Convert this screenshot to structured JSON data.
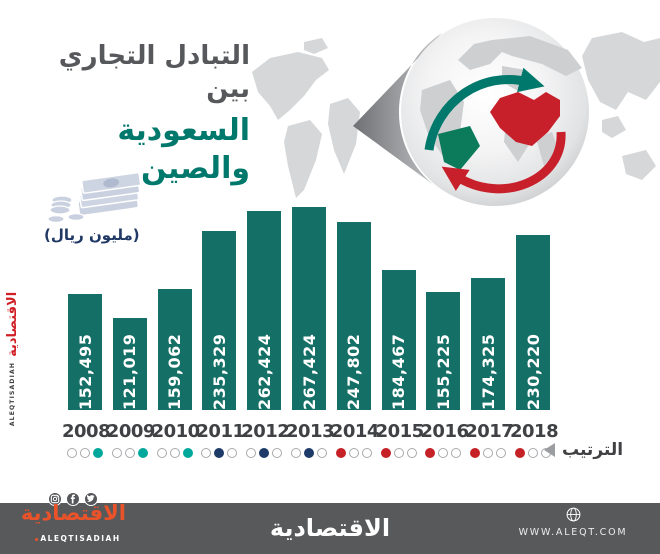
{
  "title": {
    "line1": "التبادل التجاري بين",
    "line2": "السعودية والصين"
  },
  "unit": {
    "label": "(مليون ريال)",
    "icon": "money-stack-icon"
  },
  "chart_data": {
    "type": "bar",
    "title": "التبادل التجاري بين السعودية والصين",
    "ylabel": "(مليون ريال)",
    "categories": [
      "2008",
      "2009",
      "2010",
      "2011",
      "2012",
      "2013",
      "2014",
      "2015",
      "2016",
      "2017",
      "2018"
    ],
    "values": [
      152495,
      121019,
      159062,
      235329,
      262424,
      267424,
      247802,
      184467,
      155225,
      174325,
      230220
    ],
    "value_labels": [
      "152,495",
      "121,019",
      "159,062",
      "235,329",
      "262,424",
      "267,424",
      "247,802",
      "184,467",
      "155,225",
      "174,325",
      "230,220"
    ],
    "ylim": [
      0,
      267424
    ],
    "bar_color": "#146F66",
    "grid": false,
    "legend": "الترتيب",
    "rank_dots": {
      "dot_colors": {
        "teal": "#00A79B",
        "navy": "#1E3A68",
        "red": "#C52127"
      },
      "outline_color": "#A7A9AC",
      "per_year": [
        {
          "year": "2008",
          "rank": 3,
          "dots": [
            "outline",
            "outline",
            "teal"
          ]
        },
        {
          "year": "2009",
          "rank": 3,
          "dots": [
            "outline",
            "outline",
            "teal"
          ]
        },
        {
          "year": "2010",
          "rank": 3,
          "dots": [
            "outline",
            "outline",
            "teal"
          ]
        },
        {
          "year": "2011",
          "rank": 2,
          "dots": [
            "outline",
            "navy",
            "outline"
          ]
        },
        {
          "year": "2012",
          "rank": 2,
          "dots": [
            "outline",
            "navy",
            "outline"
          ]
        },
        {
          "year": "2013",
          "rank": 2,
          "dots": [
            "outline",
            "navy",
            "outline"
          ]
        },
        {
          "year": "2014",
          "rank": 1,
          "dots": [
            "red",
            "outline",
            "outline"
          ]
        },
        {
          "year": "2015",
          "rank": 1,
          "dots": [
            "red",
            "outline",
            "outline"
          ]
        },
        {
          "year": "2016",
          "rank": 1,
          "dots": [
            "red",
            "outline",
            "outline"
          ]
        },
        {
          "year": "2017",
          "rank": 1,
          "dots": [
            "red",
            "outline",
            "outline"
          ]
        },
        {
          "year": "2018",
          "rank": 1,
          "dots": [
            "red",
            "outline",
            "outline"
          ]
        }
      ]
    }
  },
  "ranking": {
    "label": "الترتيب"
  },
  "hero": {
    "globe_icon": "globe-with-trade-arrows",
    "highlight_china_color": "#C8202B",
    "highlight_saudi_color": "#0B7B5C",
    "arrow_to_china_color": "#00786B",
    "arrow_to_saudi_color": "#C8202B"
  },
  "watermark": {
    "arabic": "الاقتصادية",
    "latin": "ALEQTISADIAH"
  },
  "footer": {
    "bg_color": "#58595B",
    "brand_color": "#EA5329",
    "brand_arabic": "الاقتصادية",
    "brand_latin": "ALEQTISADIAH",
    "center_wordmark": "الاقتصادية",
    "website": "WWW.ALEQT.COM",
    "social_icons": [
      "instagram-icon",
      "facebook-icon",
      "twitter-icon"
    ]
  },
  "colors": {
    "bar_teal": "#146F66",
    "title_gray": "#57585B",
    "title_teal": "#00786C",
    "unit_navy": "#1F3864"
  }
}
